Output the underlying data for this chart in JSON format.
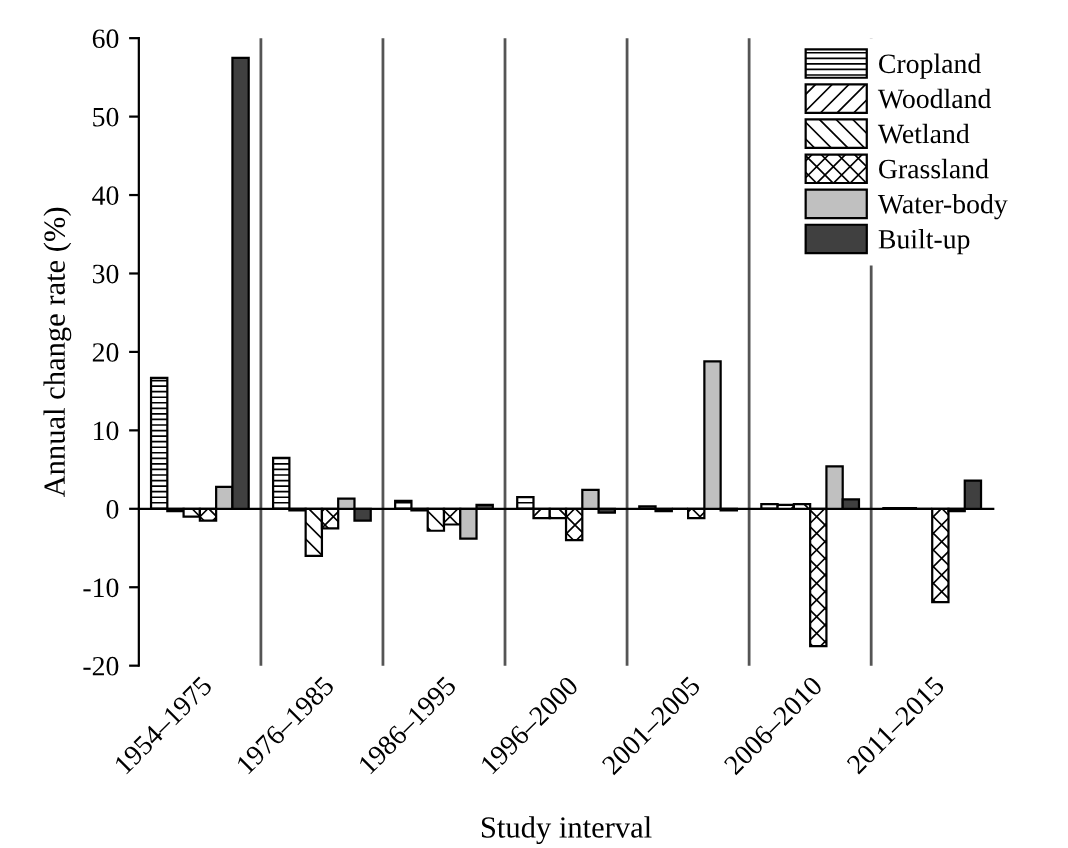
{
  "chart_data": {
    "type": "bar",
    "xlabel": "Study interval",
    "ylabel": "Annual change rate (%)",
    "categories": [
      "1954–1975",
      "1976–1985",
      "1986–1995",
      "1996–2000",
      "2001–2005",
      "2006–2010",
      "2011–2015"
    ],
    "series": [
      {
        "name": "Cropland",
        "color": "#000000",
        "values": [
          16.7,
          6.5,
          1.0,
          1.5,
          0.3,
          0.6,
          0.1
        ]
      },
      {
        "name": "Woodland",
        "color": "#000000",
        "values": [
          -0.3,
          -0.2,
          -0.2,
          -1.2,
          -0.3,
          0.5,
          0.1
        ]
      },
      {
        "name": "Wetland",
        "color": "#000000",
        "values": [
          -1.0,
          -6.0,
          -2.8,
          -1.2,
          0.0,
          0.6,
          0.0
        ]
      },
      {
        "name": "Grassland",
        "color": "#000000",
        "values": [
          -1.5,
          -2.5,
          -2.0,
          -4.0,
          -1.2,
          -17.5,
          -11.9
        ]
      },
      {
        "name": "Water-body",
        "color": "#c0c0c0",
        "values": [
          2.8,
          1.3,
          -3.8,
          2.4,
          18.8,
          5.4,
          -0.3
        ]
      },
      {
        "name": "Built-up",
        "color": "#404040",
        "values": [
          57.5,
          -1.5,
          0.5,
          -0.5,
          -0.2,
          1.2,
          3.6
        ]
      }
    ],
    "ylim": [
      -20,
      60
    ],
    "yticks": [
      -20,
      -10,
      0,
      10,
      20,
      30,
      40,
      50,
      60
    ],
    "grid": "x",
    "legend": "top right"
  }
}
